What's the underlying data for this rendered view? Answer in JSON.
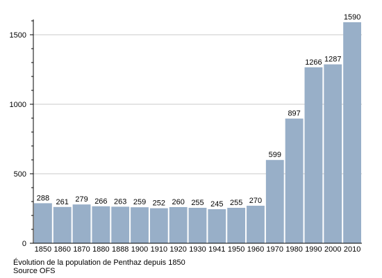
{
  "chart_data": {
    "type": "bar",
    "categories": [
      "1850",
      "1860",
      "1870",
      "1880",
      "1888",
      "1900",
      "1910",
      "1920",
      "1930",
      "1941",
      "1950",
      "1960",
      "1970",
      "1980",
      "1990",
      "2000",
      "2010"
    ],
    "values": [
      288,
      261,
      279,
      266,
      263,
      259,
      252,
      260,
      255,
      245,
      255,
      270,
      599,
      897,
      1266,
      1287,
      1590
    ],
    "ylim": [
      0,
      1600
    ],
    "yticks": [
      0,
      500,
      1000,
      1500
    ],
    "minor_step": 100,
    "grid": true,
    "bar_color": "#98afc8",
    "grid_color": "#c8c8c8"
  },
  "caption": {
    "line1": "Évolution de la population de Penthaz depuis 1850",
    "line2": "Source OFS"
  }
}
